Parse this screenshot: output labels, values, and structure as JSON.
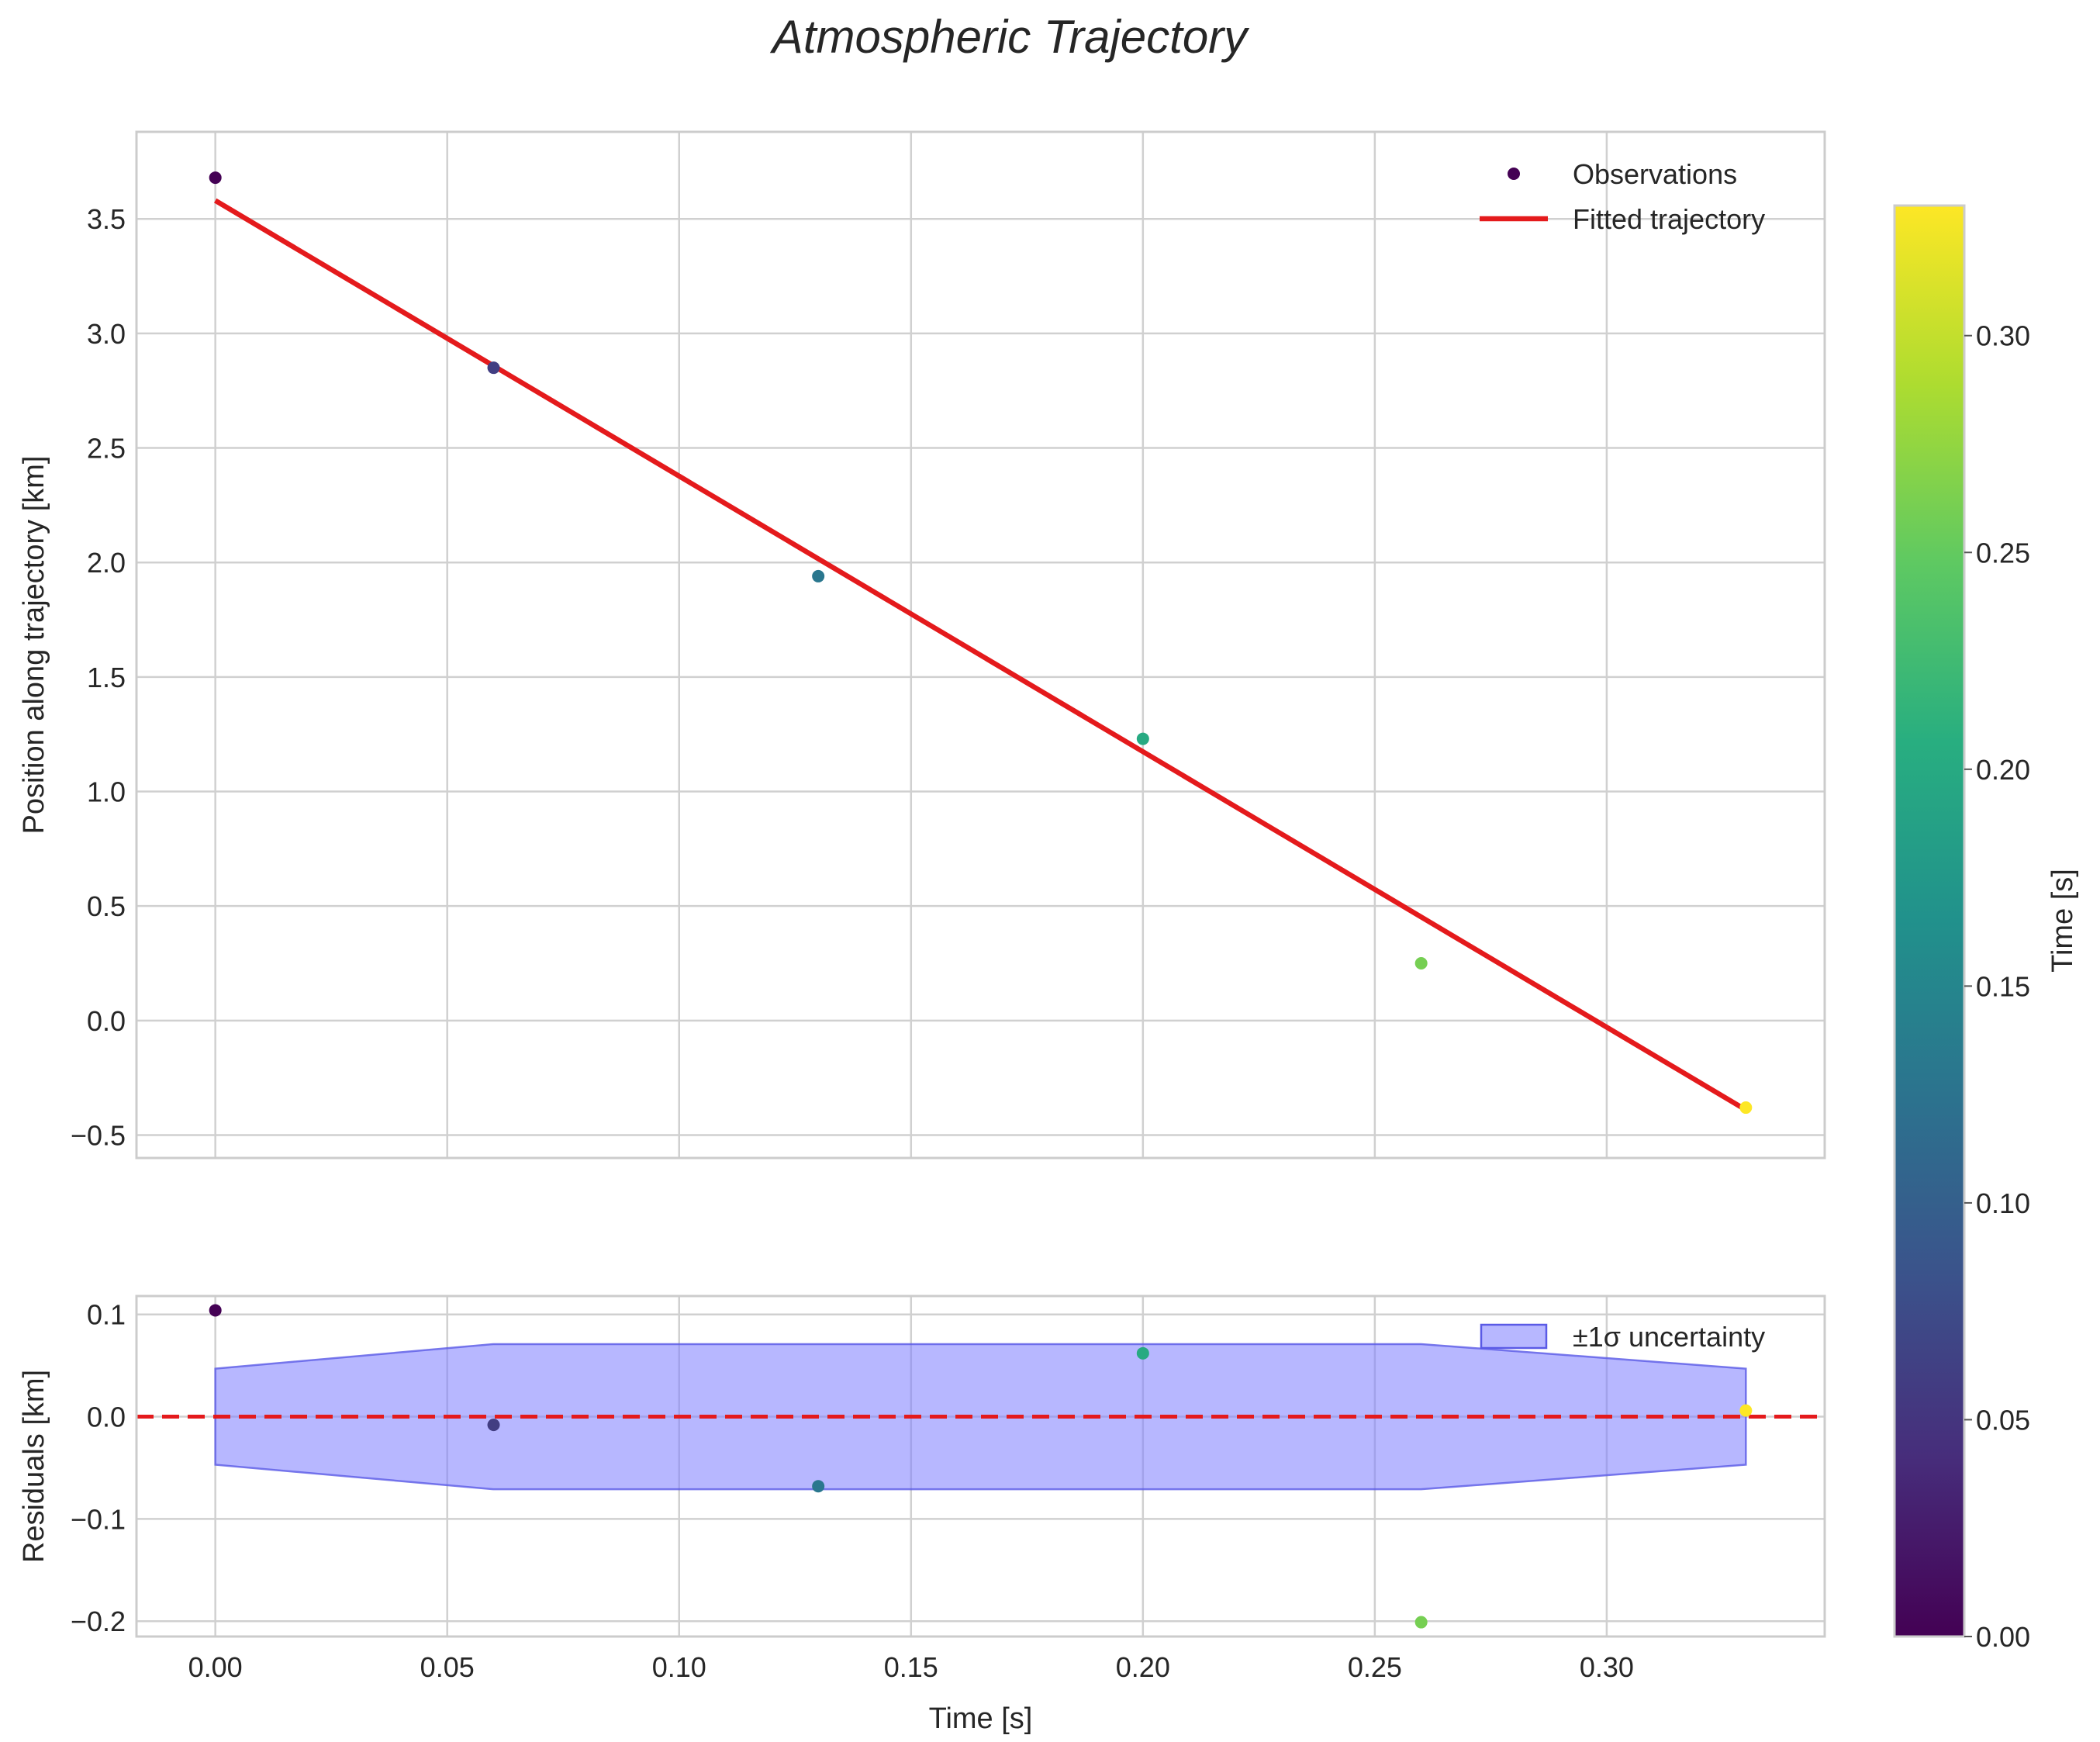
{
  "title": "Atmospheric Trajectory",
  "chart_data": [
    {
      "type": "scatter",
      "panel": "top",
      "title": "Atmospheric Trajectory",
      "xlabel": "",
      "ylabel": "Position along trajectory [km]",
      "xlim": [
        -0.017,
        0.347
      ],
      "ylim": [
        -0.6,
        3.88
      ],
      "yticks": [
        3.5,
        3.0,
        2.5,
        2.0,
        1.5,
        1.0,
        0.5,
        0.0,
        -0.5
      ],
      "ytick_labels": [
        "3.5",
        "3.0",
        "2.5",
        "2.0",
        "1.5",
        "1.0",
        "0.5",
        "0.0",
        "−0.5"
      ],
      "xticks": [
        0.0,
        0.05,
        0.1,
        0.15,
        0.2,
        0.25,
        0.3
      ],
      "grid": true,
      "legend_position": "top-right",
      "series": [
        {
          "name": "Observations",
          "kind": "scatter",
          "x": [
            0.0,
            0.06,
            0.13,
            0.2,
            0.26,
            0.33
          ],
          "y": [
            3.68,
            2.85,
            1.94,
            1.23,
            0.25,
            -0.38
          ]
        },
        {
          "name": "Fitted trajectory",
          "kind": "line",
          "color": "#e41a1c",
          "x": [
            0.0,
            0.33
          ],
          "y": [
            3.58,
            -0.39
          ]
        }
      ]
    },
    {
      "type": "scatter",
      "panel": "bottom",
      "xlabel": "Time [s]",
      "ylabel": "Residuals [km]",
      "xlim": [
        -0.017,
        0.347
      ],
      "ylim": [
        -0.215,
        0.118
      ],
      "yticks": [
        0.1,
        0.0,
        -0.1,
        -0.2
      ],
      "ytick_labels": [
        "0.1",
        "0.0",
        "−0.1",
        "−0.2"
      ],
      "xticks": [
        0.0,
        0.05,
        0.1,
        0.15,
        0.2,
        0.25,
        0.3
      ],
      "xtick_labels": [
        "0.00",
        "0.05",
        "0.10",
        "0.15",
        "0.20",
        "0.25",
        "0.30"
      ],
      "grid": true,
      "legend_position": "top-right",
      "zero_line_color": "#e41a1c",
      "series": [
        {
          "name": "Residuals",
          "kind": "scatter",
          "x": [
            0.0,
            0.06,
            0.13,
            0.2,
            0.26,
            0.33
          ],
          "y": [
            0.104,
            -0.008,
            -0.068,
            0.062,
            -0.201,
            0.006
          ]
        },
        {
          "name": "±1σ uncertainty",
          "kind": "band",
          "color": "#7b7bff",
          "x": [
            0.0,
            0.06,
            0.13,
            0.2,
            0.26,
            0.33
          ],
          "sigma": [
            0.047,
            0.071,
            0.071,
            0.071,
            0.071,
            0.047
          ]
        }
      ]
    },
    {
      "type": "colorbar",
      "label": "Time [s]",
      "range": [
        0.0,
        0.33
      ],
      "ticks": [
        0.0,
        0.05,
        0.1,
        0.15,
        0.2,
        0.25,
        0.3
      ],
      "tick_labels": [
        "0.00",
        "0.05",
        "0.10",
        "0.15",
        "0.20",
        "0.25",
        "0.30"
      ],
      "colormap": "viridis"
    }
  ]
}
